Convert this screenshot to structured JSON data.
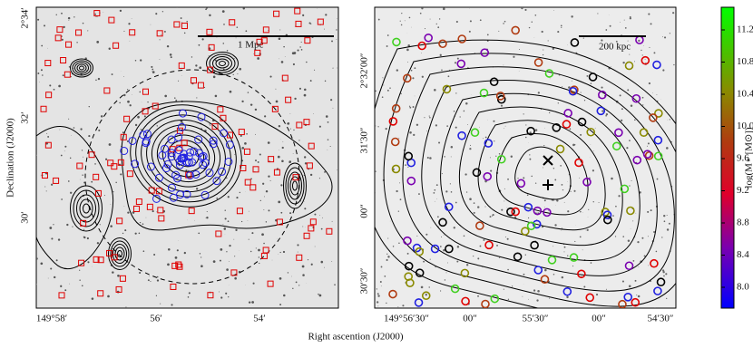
{
  "left_panel": {
    "y_ticks": [
      "2°34′",
      "32′",
      "30′"
    ],
    "x_ticks": [
      "149°58′",
      "56′",
      "54′"
    ],
    "scale_bar": "1 Mpc"
  },
  "right_panel": {
    "y_ticks": [
      "2°32′00″",
      "31′30″",
      "00″",
      "30′30″"
    ],
    "x_ticks": [
      "149°56′30″",
      "00″",
      "55′30″",
      "00″",
      "54′30″"
    ],
    "scale_bar": "200 kpc"
  },
  "y_label": "Declination (J2000)",
  "x_label": "Right ascention (J2000)",
  "colorbar": {
    "label": "log(M⋆ [M⊙])",
    "ticks": [
      "11.2",
      "10.8",
      "10.4",
      "10.0",
      "9.6",
      "9.2",
      "8.8",
      "8.4",
      "8.0"
    ]
  }
}
